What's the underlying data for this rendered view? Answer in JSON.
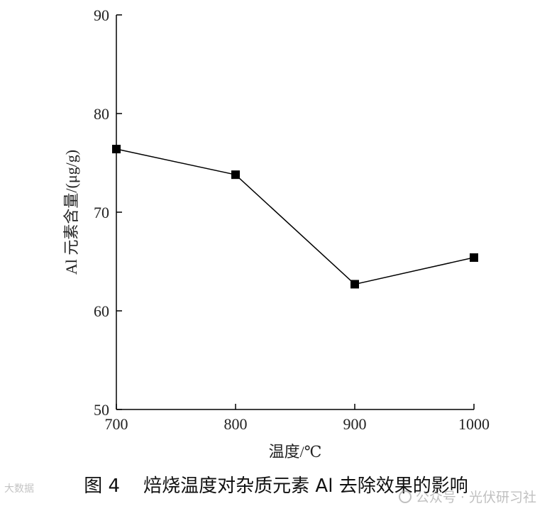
{
  "chart_data": {
    "type": "line",
    "xlabel": "温度/℃",
    "ylabel": "Al 元素含量/(μg/g)",
    "x": [
      700,
      800,
      900,
      1000
    ],
    "xticks": [
      700,
      800,
      900,
      1000
    ],
    "xlim": [
      700,
      1000
    ],
    "ylim": [
      50,
      90
    ],
    "yticks": [
      50,
      60,
      70,
      80,
      90
    ],
    "series": [
      {
        "values": [
          76.4,
          73.8,
          62.7,
          65.4
        ],
        "color": "#000000",
        "marker": "square"
      }
    ],
    "grid": false,
    "legend": "none"
  },
  "caption": "图 4    焙烧温度对杂质元素 Al 去除效果的影响",
  "watermark": "公众号 · 光伏研习社",
  "watermark_left": "大数据"
}
